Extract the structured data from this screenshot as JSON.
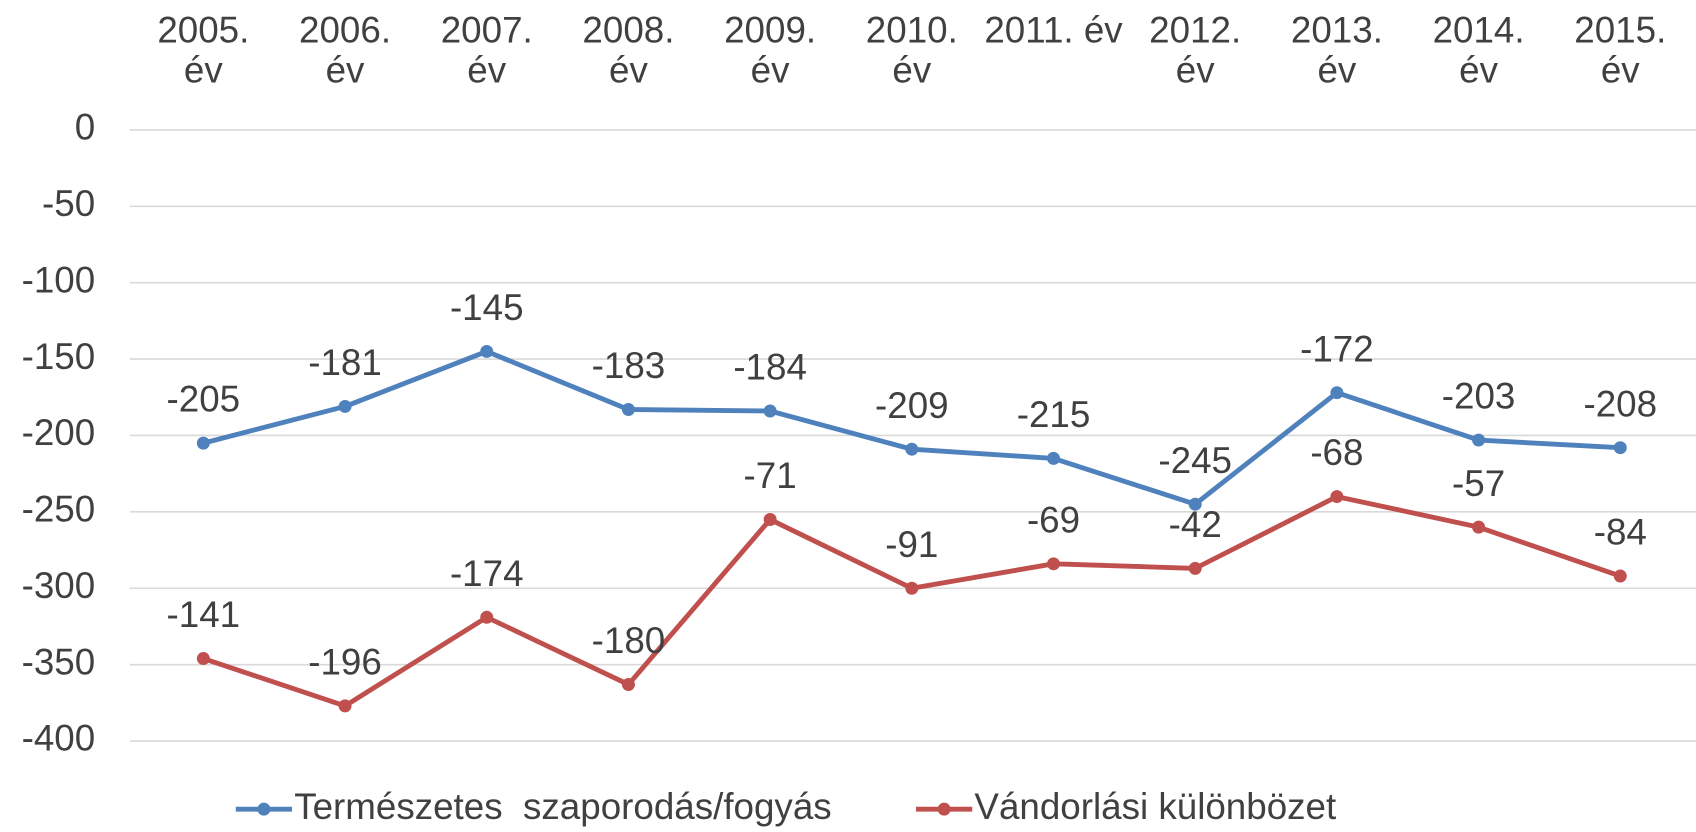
{
  "chart_data": {
    "type": "line",
    "stacked": true,
    "categories": [
      "2005. év",
      "2006. év",
      "2007. év",
      "2008. év",
      "2009. év",
      "2010. év",
      "2011. év",
      "2012. év",
      "2013. év",
      "2014. év",
      "2015. év"
    ],
    "series": [
      {
        "name": "Természetes  szaporodás/fogyás",
        "color": "#4f81bd",
        "values": [
          -205,
          -181,
          -145,
          -183,
          -184,
          -209,
          -215,
          -245,
          -172,
          -203,
          -208
        ]
      },
      {
        "name": "Vándorlási különbözet",
        "color": "#c0504d",
        "values": [
          -141,
          -196,
          -174,
          -180,
          -71,
          -91,
          -69,
          -42,
          -68,
          -57,
          -84
        ]
      }
    ],
    "ylim": [
      -400,
      0
    ],
    "yticks": [
      0,
      -50,
      -100,
      -150,
      -200,
      -250,
      -300,
      -350,
      -400
    ],
    "grid": true,
    "legend": "bottom",
    "x_axis_position": "top"
  }
}
